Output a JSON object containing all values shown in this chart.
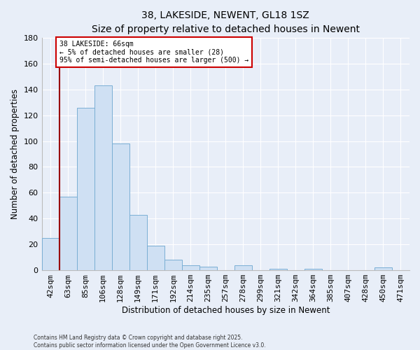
{
  "title": "38, LAKESIDE, NEWENT, GL18 1SZ",
  "subtitle": "Size of property relative to detached houses in Newent",
  "xlabel": "Distribution of detached houses by size in Newent",
  "ylabel": "Number of detached properties",
  "bar_color": "#cfe0f3",
  "bar_edge_color": "#7aafd4",
  "background_color": "#e8eef8",
  "plot_bg_color": "#e8eef8",
  "grid_color": "#ffffff",
  "categories": [
    "42sqm",
    "63sqm",
    "85sqm",
    "106sqm",
    "128sqm",
    "149sqm",
    "171sqm",
    "192sqm",
    "214sqm",
    "235sqm",
    "257sqm",
    "278sqm",
    "299sqm",
    "321sqm",
    "342sqm",
    "364sqm",
    "385sqm",
    "407sqm",
    "428sqm",
    "450sqm",
    "471sqm"
  ],
  "values": [
    25,
    57,
    126,
    143,
    98,
    43,
    19,
    8,
    4,
    3,
    0,
    4,
    0,
    1,
    0,
    1,
    0,
    0,
    0,
    2,
    0
  ],
  "ylim": [
    0,
    180
  ],
  "yticks": [
    0,
    20,
    40,
    60,
    80,
    100,
    120,
    140,
    160,
    180
  ],
  "property_line_x": 0.5,
  "property_line_color": "#990000",
  "annotation_text": "38 LAKESIDE: 66sqm\n← 5% of detached houses are smaller (28)\n95% of semi-detached houses are larger (500) →",
  "annotation_box_color": "#ffffff",
  "annotation_box_edge_color": "#cc0000",
  "footer_line1": "Contains HM Land Registry data © Crown copyright and database right 2025.",
  "footer_line2": "Contains public sector information licensed under the Open Government Licence v3.0."
}
